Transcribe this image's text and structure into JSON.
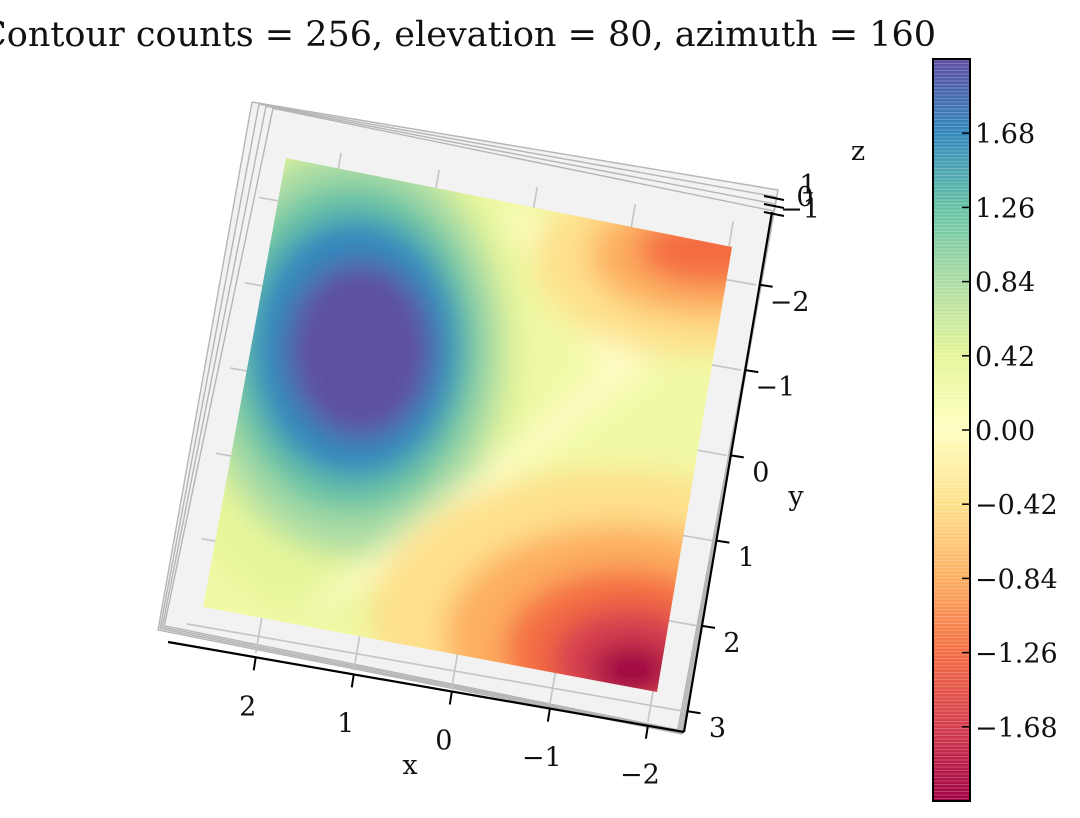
{
  "chart_data": {
    "type": "surface-3d",
    "title": "Contour counts = 256, elevation = 80, azimuth = 160",
    "contour_count": 256,
    "view": {
      "elevation": 80,
      "azimuth": 160
    },
    "colormap": "Spectral",
    "x_axis": {
      "label": "x",
      "ticks": [
        {
          "value": 2,
          "label": "2"
        },
        {
          "value": 1,
          "label": "1"
        },
        {
          "value": 0,
          "label": "0"
        },
        {
          "value": -1,
          "label": "−1"
        },
        {
          "value": -2,
          "label": "−2"
        }
      ]
    },
    "y_axis": {
      "label": "y",
      "ticks": [
        {
          "value": -2,
          "label": "−2"
        },
        {
          "value": -1,
          "label": "−1"
        },
        {
          "value": 0,
          "label": "0"
        },
        {
          "value": 1,
          "label": "1"
        },
        {
          "value": 2,
          "label": "2"
        },
        {
          "value": 3,
          "label": "3"
        }
      ]
    },
    "z_axis": {
      "label": "z",
      "ticks": [
        {
          "value": 1,
          "label": "1"
        },
        {
          "value": 0,
          "label": "0"
        },
        {
          "value": -1,
          "label": "−1"
        }
      ]
    },
    "colorbar": {
      "range": [
        -2.1,
        2.1
      ],
      "ticks": [
        {
          "value": 1.68,
          "label": "1.68"
        },
        {
          "value": 1.26,
          "label": "1.26"
        },
        {
          "value": 0.84,
          "label": "0.84"
        },
        {
          "value": 0.42,
          "label": "0.42"
        },
        {
          "value": 0.0,
          "label": "0.00"
        },
        {
          "value": -0.42,
          "label": "−0.42"
        },
        {
          "value": -0.84,
          "label": "−0.84"
        },
        {
          "value": -1.26,
          "label": "−1.26"
        },
        {
          "value": -1.68,
          "label": "−1.68"
        }
      ]
    },
    "surface_features": [
      {
        "kind": "maximum",
        "x": 1.2,
        "y": -1.0,
        "z": 1.9
      },
      {
        "kind": "minimum",
        "x": -1.9,
        "y": 2.6,
        "z": -2.0
      },
      {
        "kind": "minimum",
        "x": -1.9,
        "y": -2.3,
        "z": -1.2
      }
    ]
  }
}
